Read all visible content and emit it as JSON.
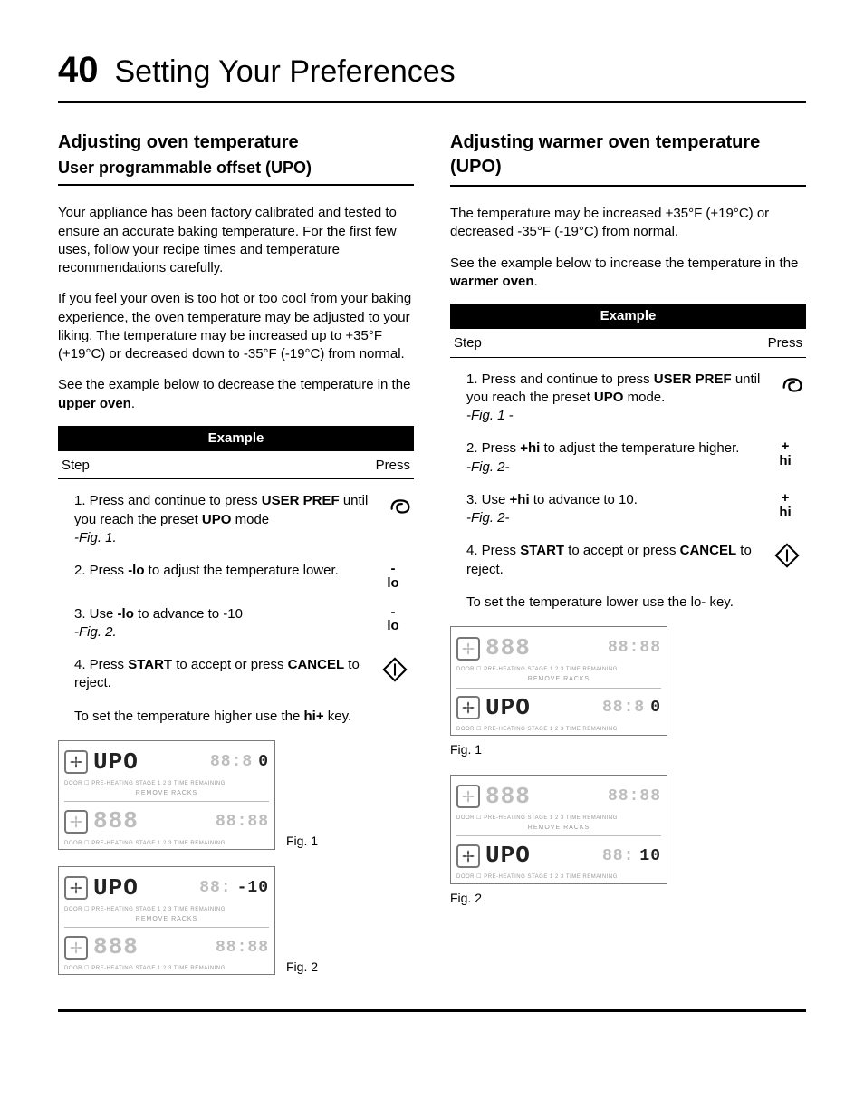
{
  "page_number": "40",
  "page_title": "Setting Your Preferences",
  "left": {
    "heading": "Adjusting oven temperature",
    "subheading": "User programmable offset (UPO)",
    "p1": "Your appliance has been factory calibrated and tested to ensure an accurate baking temperature. For the first few uses, follow your recipe times and temperature recommendations carefully.",
    "p2": "If you feel your oven is too hot or too cool from your baking experience, the oven temperature may be adjusted to your liking. The temperature may be increased up to +35°F (+19°C) or decreased down to -35°F (-19°C) from normal.",
    "p3_pre": "See the example below to decrease the temperature in the ",
    "p3_bold": "upper oven",
    "p3_post": ".",
    "example_label": "Example",
    "col_step": "Step",
    "col_press": "Press",
    "steps": [
      {
        "n": "1.",
        "text_pre": "Press and continue to press ",
        "b1": "USER PREF",
        "text_mid": " until you reach the preset ",
        "b2": "UPO",
        "text_post": " mode",
        "fig": "-Fig. 1.",
        "press_type": "icon-swirl"
      },
      {
        "n": "2.",
        "text_pre": "Press ",
        "b1": "-lo",
        "text_post": " to adjust the temperature lower.",
        "press_type": "text",
        "press_top": "-",
        "press_bot": "lo"
      },
      {
        "n": "3.",
        "text_pre": "Use ",
        "b1": "-lo",
        "text_post": " to advance to -10",
        "fig": "-Fig. 2.",
        "press_type": "text",
        "press_top": "-",
        "press_bot": "lo"
      },
      {
        "n": "4.",
        "text_pre": "Press ",
        "b1": "START",
        "text_mid": " to accept or press ",
        "b2": "CANCEL",
        "text_post": " to reject.",
        "press_type": "icon-diamond"
      }
    ],
    "followup_pre": "To set the temperature higher use the ",
    "followup_bold": "hi+",
    "followup_post": " key.",
    "fig1_label": "Fig. 1",
    "fig2_label": "Fig. 2",
    "display": {
      "fig1": {
        "top_big": "UPO",
        "top_big_dark": true,
        "top_right": "88:8",
        "top_right_end": "0",
        "bot_big": "888",
        "bot_right": "88:88"
      },
      "fig2": {
        "top_big": "UPO",
        "top_big_dark": true,
        "top_right": "88:",
        "top_right_end": "-10",
        "bot_big": "888",
        "bot_right": "88:88"
      },
      "tiny": "DOOR ☐   PRE-HEATING   STAGE 1 2 3   TIME REMAINING",
      "remove": "REMOVE RACKS"
    }
  },
  "right": {
    "heading": "Adjusting warmer oven temperature (UPO)",
    "p1": "The temperature may be increased +35°F (+19°C) or decreased -35°F (-19°C) from normal.",
    "p2_pre": "See the example below to increase the temperature in the ",
    "p2_bold": "warmer oven",
    "p2_post": ".",
    "example_label": "Example",
    "col_step": "Step",
    "col_press": "Press",
    "steps": [
      {
        "n": "1.",
        "text_pre": "Press and continue to press ",
        "b1": "USER PREF",
        "text_mid": " until you reach the preset ",
        "b2": "UPO",
        "text_post": " mode.",
        "fig": "-Fig. 1 -",
        "press_type": "icon-swirl"
      },
      {
        "n": "2.",
        "text_pre": "Press ",
        "b1": "+hi",
        "text_post": " to adjust the temperature higher. ",
        "fig": "-Fig. 2-",
        "press_type": "text",
        "press_top": "+",
        "press_bot": "hi"
      },
      {
        "n": "3.",
        "text_pre": "Use ",
        "b1": "+hi",
        "text_post": " to advance to 10.",
        "fig": "-Fig. 2-",
        "press_type": "text",
        "press_top": "+",
        "press_bot": "hi"
      },
      {
        "n": "4.",
        "text_pre": "Press ",
        "b1": "START",
        "text_mid": " to accept or press ",
        "b2": "CANCEL",
        "text_post": " to reject.",
        "press_type": "icon-diamond"
      }
    ],
    "followup": "To set the temperature lower use the lo- key.",
    "fig1_label": "Fig. 1",
    "fig2_label": "Fig. 2",
    "display": {
      "fig1": {
        "top_big": "888",
        "top_right": "88:88",
        "bot_big": "UPO",
        "bot_big_dark": true,
        "bot_right": "88:8",
        "bot_right_end": "0"
      },
      "fig2": {
        "top_big": "888",
        "top_right": "88:88",
        "bot_big": "UPO",
        "bot_big_dark": true,
        "bot_right": "88:",
        "bot_right_end": "10"
      },
      "tiny": "DOOR ☐   PRE-HEATING   STAGE 1 2 3   TIME REMAINING",
      "remove": "REMOVE RACKS"
    }
  },
  "colors": {
    "text": "#000000",
    "bg": "#ffffff",
    "dim": "#bdbdbd",
    "border": "#7a7a7a"
  }
}
